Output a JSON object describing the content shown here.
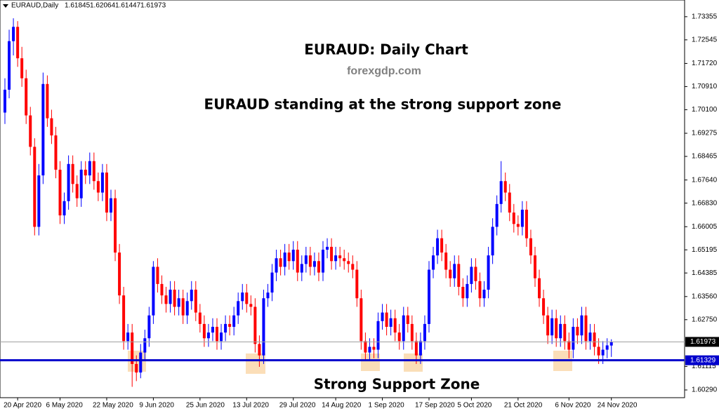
{
  "chart_data": {
    "type": "candlestick",
    "symbol": "EURAUD,Daily",
    "title": "EURAUD: Daily Chart",
    "source": "forexgdp.com",
    "subtitle": "EURAUD standing at the strong support zone",
    "annotation": "Strong Support Zone",
    "up_color": "#0000ff",
    "down_color": "#ff0000",
    "current_price": 1.61973,
    "support_level": 1.61329,
    "support_color": "#0000cc",
    "ylim": [
      1.6002,
      1.7394
    ],
    "yticks": [
      1.73355,
      1.72545,
      {
        "value": 1.7172,
        "label": "1.71720"
      },
      {
        "value": 1.7091,
        "label": "1.70910"
      },
      {
        "value": 1.701,
        "label": "1.70100"
      },
      1.69275,
      1.68465,
      {
        "value": 1.6764,
        "label": "1.67640"
      },
      {
        "value": 1.6683,
        "label": "1.66830"
      },
      1.66005,
      1.65195,
      1.64385,
      {
        "value": 1.6356,
        "label": "1.63560"
      },
      {
        "value": 1.6275,
        "label": "1.62750"
      },
      1.61115,
      {
        "value": 1.6029,
        "label": "1.60290"
      }
    ],
    "categories": [
      null,
      null,
      null,
      "20 Apr 2020",
      null,
      null,
      null,
      null,
      null,
      null,
      null,
      null,
      null,
      "6 May 2020",
      null,
      null,
      null,
      null,
      null,
      null,
      null,
      null,
      null,
      null,
      "22 May 2020",
      null,
      null,
      null,
      null,
      null,
      null,
      null,
      null,
      null,
      null,
      "9 Jun 2020",
      null,
      null,
      null,
      null,
      null,
      null,
      null,
      null,
      null,
      null,
      "25 Jun 2020",
      null,
      null,
      null,
      null,
      null,
      null,
      null,
      null,
      null,
      null,
      "13 Jul 2020",
      null,
      null,
      null,
      null,
      null,
      null,
      null,
      null,
      null,
      null,
      "29 Jul 2020",
      null,
      null,
      null,
      null,
      null,
      null,
      null,
      null,
      null,
      "14 Aug 2020",
      null,
      null,
      null,
      null,
      null,
      null,
      null,
      null,
      null,
      null,
      "1 Sep 2020",
      null,
      null,
      null,
      null,
      null,
      null,
      null,
      null,
      null,
      null,
      "17 Sep 2020",
      null,
      null,
      null,
      null,
      null,
      null,
      null,
      null,
      null,
      "5 Oct 2020",
      null,
      null,
      null,
      null,
      null,
      null,
      null,
      null,
      null,
      null,
      "21 Oct 2020",
      null,
      null,
      null,
      null,
      null,
      null,
      null,
      null,
      null,
      null,
      null,
      "6 Nov 2020",
      null,
      null,
      null,
      null,
      null,
      null,
      null,
      null,
      null,
      "24 Nov 2020"
    ],
    "ohlc": [
      [
        1.7,
        1.712,
        1.696,
        1.708
      ],
      [
        1.708,
        1.729,
        1.705,
        1.725
      ],
      [
        1.725,
        1.733,
        1.72,
        1.73
      ],
      [
        1.73,
        1.732,
        1.716,
        1.719
      ],
      [
        1.719,
        1.723,
        1.709,
        1.712
      ],
      [
        1.712,
        1.715,
        1.696,
        1.699
      ],
      [
        1.699,
        1.702,
        1.685,
        1.688
      ],
      [
        1.688,
        1.691,
        1.657,
        1.66
      ],
      [
        1.66,
        1.682,
        1.657,
        1.678
      ],
      [
        1.678,
        1.714,
        1.675,
        1.71
      ],
      [
        1.71,
        1.713,
        1.695,
        1.698
      ],
      [
        1.698,
        1.701,
        1.689,
        1.692
      ],
      [
        1.692,
        1.695,
        1.677,
        1.68
      ],
      [
        1.68,
        1.683,
        1.661,
        1.664
      ],
      [
        1.664,
        1.672,
        1.661,
        1.669
      ],
      [
        1.669,
        1.685,
        1.666,
        1.682
      ],
      [
        1.682,
        1.685,
        1.672,
        1.675
      ],
      [
        1.675,
        1.678,
        1.667,
        1.67
      ],
      [
        1.67,
        1.683,
        1.667,
        1.68
      ],
      [
        1.68,
        1.683,
        1.675,
        1.678
      ],
      [
        1.678,
        1.686,
        1.675,
        1.683
      ],
      [
        1.683,
        1.686,
        1.673,
        1.676
      ],
      [
        1.676,
        1.679,
        1.669,
        1.672
      ],
      [
        1.672,
        1.682,
        1.669,
        1.679
      ],
      [
        1.679,
        1.682,
        1.662,
        1.665
      ],
      [
        1.665,
        1.673,
        1.662,
        1.67
      ],
      [
        1.67,
        1.673,
        1.648,
        1.651
      ],
      [
        1.651,
        1.654,
        1.633,
        1.636
      ],
      [
        1.636,
        1.639,
        1.617,
        1.62
      ],
      [
        1.62,
        1.626,
        1.617,
        1.623
      ],
      [
        1.623,
        1.626,
        1.604,
        1.612
      ],
      [
        1.612,
        1.615,
        1.606,
        1.609
      ],
      [
        1.609,
        1.619,
        1.607,
        1.616
      ],
      [
        1.616,
        1.624,
        1.613,
        1.621
      ],
      [
        1.621,
        1.632,
        1.618,
        1.629
      ],
      [
        1.629,
        1.648,
        1.626,
        1.646
      ],
      [
        1.646,
        1.649,
        1.637,
        1.64
      ],
      [
        1.64,
        1.643,
        1.633,
        1.636
      ],
      [
        1.636,
        1.639,
        1.63,
        1.633
      ],
      [
        1.633,
        1.641,
        1.63,
        1.638
      ],
      [
        1.638,
        1.641,
        1.629,
        1.632
      ],
      [
        1.632,
        1.638,
        1.629,
        1.635
      ],
      [
        1.635,
        1.638,
        1.626,
        1.629
      ],
      [
        1.629,
        1.637,
        1.626,
        1.634
      ],
      [
        1.634,
        1.641,
        1.631,
        1.638
      ],
      [
        1.638,
        1.641,
        1.627,
        1.63
      ],
      [
        1.63,
        1.633,
        1.623,
        1.626
      ],
      [
        1.626,
        1.629,
        1.618,
        1.621
      ],
      [
        1.621,
        1.626,
        1.618,
        1.623
      ],
      [
        1.623,
        1.628,
        1.62,
        1.625
      ],
      [
        1.625,
        1.628,
        1.617,
        1.62
      ],
      [
        1.62,
        1.626,
        1.617,
        1.623
      ],
      [
        1.623,
        1.629,
        1.62,
        1.626
      ],
      [
        1.626,
        1.629,
        1.622,
        1.625
      ],
      [
        1.625,
        1.632,
        1.622,
        1.629
      ],
      [
        1.629,
        1.637,
        1.626,
        1.634
      ],
      [
        1.634,
        1.64,
        1.631,
        1.637
      ],
      [
        1.637,
        1.64,
        1.63,
        1.633
      ],
      [
        1.633,
        1.636,
        1.629,
        1.632
      ],
      [
        1.632,
        1.635,
        1.616,
        1.619
      ],
      [
        1.619,
        1.622,
        1.611,
        1.615
      ],
      [
        1.615,
        1.638,
        1.612,
        1.635
      ],
      [
        1.635,
        1.64,
        1.632,
        1.637
      ],
      [
        1.637,
        1.647,
        1.634,
        1.644
      ],
      [
        1.644,
        1.652,
        1.641,
        1.649
      ],
      [
        1.649,
        1.652,
        1.643,
        1.646
      ],
      [
        1.646,
        1.654,
        1.643,
        1.651
      ],
      [
        1.651,
        1.654,
        1.645,
        1.648
      ],
      [
        1.648,
        1.655,
        1.645,
        1.652
      ],
      [
        1.652,
        1.655,
        1.641,
        1.644
      ],
      [
        1.644,
        1.65,
        1.641,
        1.647
      ],
      [
        1.647,
        1.653,
        1.644,
        1.65
      ],
      [
        1.65,
        1.653,
        1.643,
        1.646
      ],
      [
        1.646,
        1.651,
        1.643,
        1.648
      ],
      [
        1.648,
        1.651,
        1.641,
        1.644
      ],
      [
        1.644,
        1.655,
        1.641,
        1.652
      ],
      [
        1.652,
        1.656,
        1.649,
        1.653
      ],
      [
        1.653,
        1.656,
        1.645,
        1.648
      ],
      [
        1.648,
        1.653,
        1.645,
        1.65
      ],
      [
        1.65,
        1.653,
        1.646,
        1.649
      ],
      [
        1.649,
        1.652,
        1.645,
        1.648
      ],
      [
        1.648,
        1.651,
        1.644,
        1.647
      ],
      [
        1.647,
        1.65,
        1.642,
        1.645
      ],
      [
        1.645,
        1.648,
        1.632,
        1.635
      ],
      [
        1.635,
        1.638,
        1.617,
        1.62
      ],
      [
        1.62,
        1.623,
        1.613,
        1.616
      ],
      [
        1.616,
        1.621,
        1.613,
        1.618
      ],
      [
        1.618,
        1.621,
        1.614,
        1.617
      ],
      [
        1.617,
        1.63,
        1.614,
        1.627
      ],
      [
        1.627,
        1.633,
        1.624,
        1.63
      ],
      [
        1.63,
        1.633,
        1.622,
        1.625
      ],
      [
        1.625,
        1.631,
        1.622,
        1.628
      ],
      [
        1.628,
        1.631,
        1.62,
        1.623
      ],
      [
        1.623,
        1.626,
        1.617,
        1.62
      ],
      [
        1.62,
        1.632,
        1.617,
        1.629
      ],
      [
        1.629,
        1.632,
        1.623,
        1.626
      ],
      [
        1.626,
        1.629,
        1.617,
        1.62
      ],
      [
        1.62,
        1.623,
        1.612,
        1.615
      ],
      [
        1.615,
        1.623,
        1.612,
        1.62
      ],
      [
        1.62,
        1.629,
        1.617,
        1.626
      ],
      [
        1.626,
        1.648,
        1.623,
        1.645
      ],
      [
        1.645,
        1.653,
        1.642,
        1.65
      ],
      [
        1.65,
        1.659,
        1.647,
        1.656
      ],
      [
        1.656,
        1.659,
        1.648,
        1.651
      ],
      [
        1.651,
        1.654,
        1.642,
        1.645
      ],
      [
        1.645,
        1.648,
        1.639,
        1.642
      ],
      [
        1.642,
        1.65,
        1.639,
        1.647
      ],
      [
        1.647,
        1.65,
        1.636,
        1.639
      ],
      [
        1.639,
        1.642,
        1.632,
        1.635
      ],
      [
        1.635,
        1.643,
        1.632,
        1.64
      ],
      [
        1.64,
        1.649,
        1.637,
        1.646
      ],
      [
        1.646,
        1.649,
        1.638,
        1.641
      ],
      [
        1.641,
        1.644,
        1.632,
        1.635
      ],
      [
        1.635,
        1.641,
        1.632,
        1.638
      ],
      [
        1.638,
        1.653,
        1.635,
        1.65
      ],
      [
        1.65,
        1.663,
        1.647,
        1.66
      ],
      [
        1.66,
        1.671,
        1.657,
        1.668
      ],
      [
        1.668,
        1.683,
        1.665,
        1.676
      ],
      [
        1.676,
        1.679,
        1.669,
        1.672
      ],
      [
        1.672,
        1.675,
        1.662,
        1.665
      ],
      [
        1.665,
        1.668,
        1.658,
        1.661
      ],
      [
        1.661,
        1.664,
        1.657,
        1.66
      ],
      [
        1.66,
        1.669,
        1.657,
        1.666
      ],
      [
        1.666,
        1.669,
        1.653,
        1.656
      ],
      [
        1.656,
        1.659,
        1.647,
        1.65
      ],
      [
        1.65,
        1.653,
        1.639,
        1.642
      ],
      [
        1.642,
        1.645,
        1.632,
        1.635
      ],
      [
        1.635,
        1.638,
        1.626,
        1.629
      ],
      [
        1.629,
        1.632,
        1.619,
        1.622
      ],
      [
        1.622,
        1.631,
        1.619,
        1.628
      ],
      [
        1.628,
        1.631,
        1.618,
        1.621
      ],
      [
        1.621,
        1.629,
        1.618,
        1.626
      ],
      [
        1.626,
        1.629,
        1.617,
        1.62
      ],
      [
        1.62,
        1.623,
        1.614,
        1.617
      ],
      [
        1.617,
        1.628,
        1.614,
        1.625
      ],
      [
        1.625,
        1.628,
        1.619,
        1.622
      ],
      [
        1.622,
        1.632,
        1.619,
        1.629
      ],
      [
        1.629,
        1.632,
        1.617,
        1.62
      ],
      [
        1.62,
        1.626,
        1.617,
        1.623
      ],
      [
        1.623,
        1.626,
        1.615,
        1.618
      ],
      [
        1.618,
        1.621,
        1.612,
        1.615
      ],
      [
        1.615,
        1.62,
        1.612,
        1.617
      ],
      [
        1.617,
        1.621,
        1.614,
        1.6185
      ],
      [
        1.61845,
        1.62064,
        1.61447,
        1.61973
      ]
    ]
  }
}
